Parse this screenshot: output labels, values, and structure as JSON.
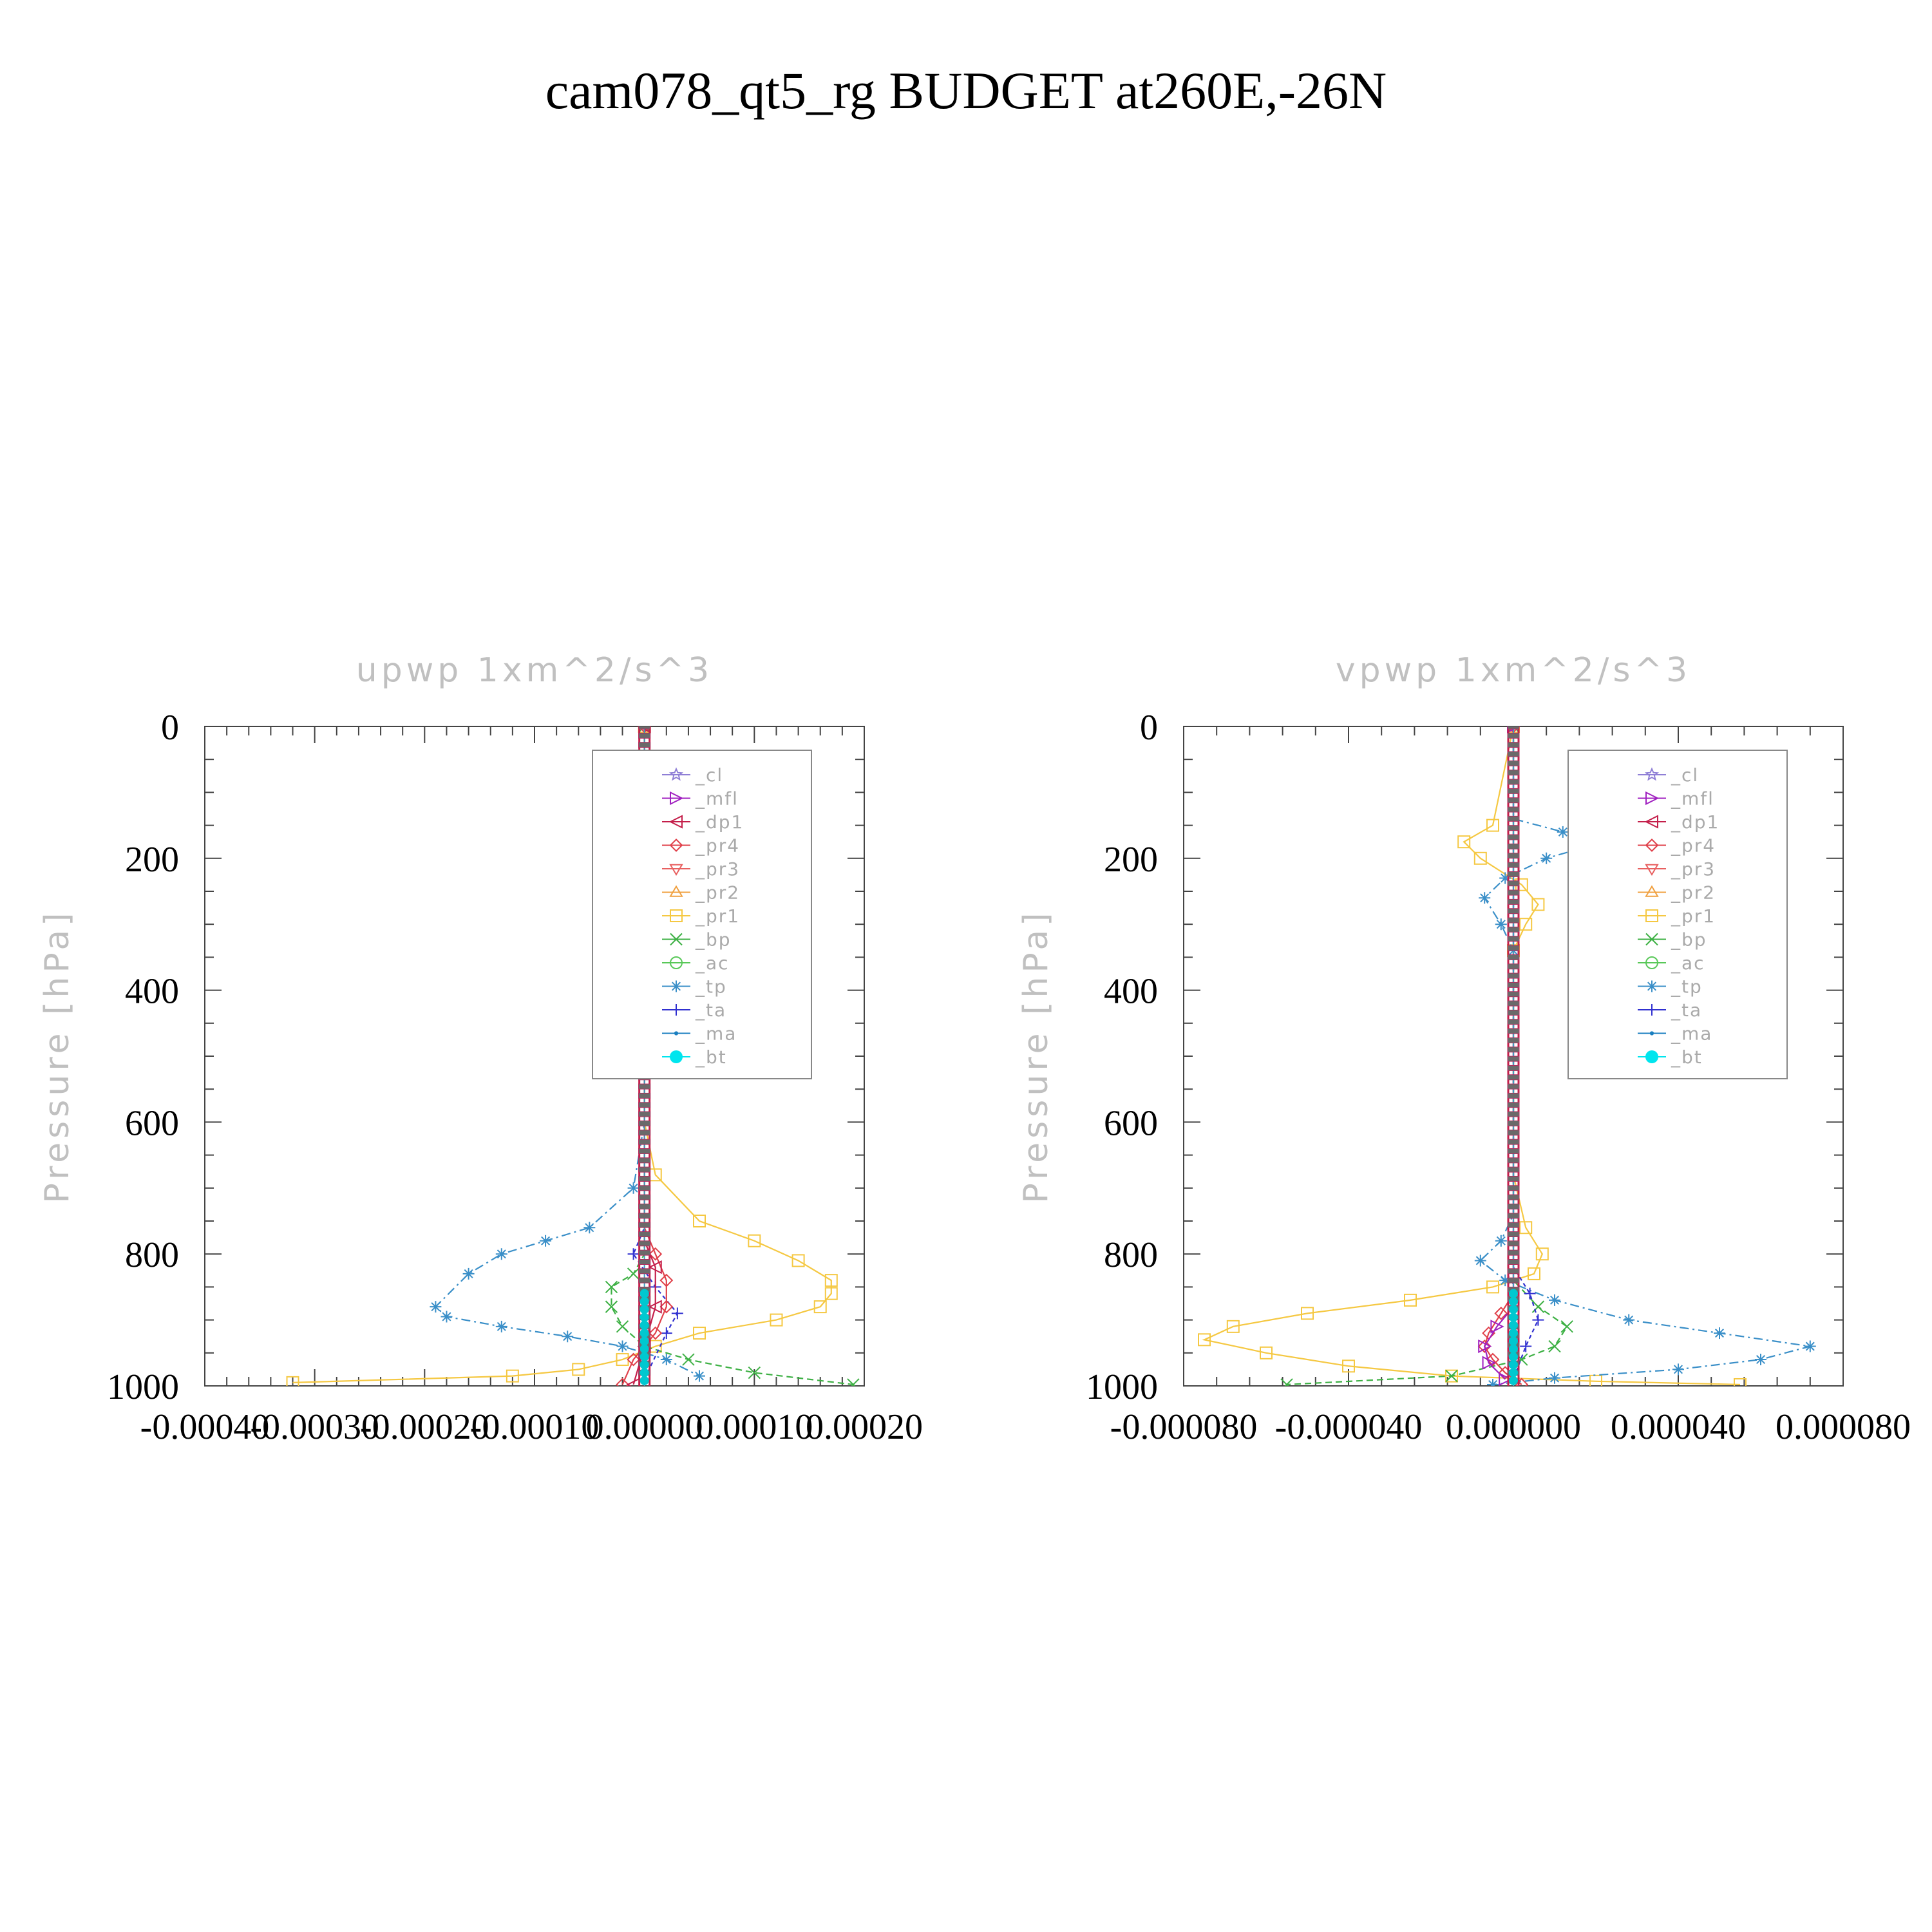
{
  "figure_title": "cam078_qt5_rg  BUDGET at260E,-26N",
  "colors": {
    "_cl": "#8f7fd6",
    "_mfl": "#a020c0",
    "_dp1": "#c41e4a",
    "_pr4": "#e0404a",
    "_pr3": "#e86060",
    "_pr2": "#f0a040",
    "_pr1": "#f5c842",
    "_bp": "#3cb043",
    "_ac": "#58c858",
    "_tp": "#3a8fc8",
    "_ta": "#3030d0",
    "_ma": "#1a7fc0",
    "_bt": "#00e5ee"
  },
  "chart_data": [
    {
      "type": "line",
      "title": "upwp   1xm^2/s^3",
      "ylabel": "Pressure [hPa]",
      "xlabel": "",
      "xlim": [
        -0.0004,
        0.0002
      ],
      "ylim": [
        1000,
        0
      ],
      "y_inverted": true,
      "xticks": [
        "-0.00040",
        "-0.00030",
        "-0.00020",
        "-0.00010",
        "0.00000",
        "0.00010",
        "0.00020"
      ],
      "yticks": [
        "0",
        "200",
        "400",
        "600",
        "800",
        "1000"
      ],
      "legend_position": "top-right",
      "legend": [
        "_cl",
        "_mfl",
        "_dp1",
        "_pr4",
        "_pr3",
        "_pr2",
        "_pr1",
        "_bp",
        "_ac",
        "_tp",
        "_ta",
        "_ma",
        "_bt"
      ],
      "series": [
        {
          "name": "_pr1",
          "x": [
            0,
            0,
            1e-05,
            5e-05,
            0.0001,
            0.00014,
            0.00017,
            0.00017,
            0.00016,
            0.00012,
            5e-05,
            1e-05,
            -2e-05,
            -6e-05,
            -0.00012,
            -0.00032
          ],
          "y": [
            0,
            600,
            680,
            750,
            780,
            810,
            840,
            860,
            880,
            900,
            920,
            940,
            960,
            975,
            985,
            995
          ]
        },
        {
          "name": "_tp",
          "x": [
            0,
            0,
            -1e-05,
            -5e-05,
            -9e-05,
            -0.00013,
            -0.00016,
            -0.00019,
            -0.00018,
            -0.00013,
            -7e-05,
            -2e-05,
            2e-05,
            5e-05
          ],
          "y": [
            0,
            600,
            700,
            760,
            780,
            800,
            830,
            880,
            895,
            910,
            925,
            940,
            960,
            985
          ]
        },
        {
          "name": "_bp",
          "x": [
            0,
            0,
            -1e-05,
            -3e-05,
            -3e-05,
            -2e-05,
            0,
            4e-05,
            0.0001,
            0.00019
          ],
          "y": [
            0,
            800,
            830,
            850,
            880,
            910,
            940,
            960,
            980,
            998
          ]
        },
        {
          "name": "_ta",
          "x": [
            0,
            0,
            -1e-05,
            1e-05,
            3e-05,
            2e-05,
            0
          ],
          "y": [
            0,
            760,
            800,
            850,
            890,
            920,
            990
          ]
        },
        {
          "name": "_pr4",
          "x": [
            0,
            0,
            1e-05,
            2e-05,
            2e-05,
            1e-05,
            -1e-05,
            -2e-05
          ],
          "y": [
            0,
            760,
            800,
            840,
            880,
            920,
            960,
            998
          ]
        },
        {
          "name": "_dp1",
          "x": [
            0,
            0,
            1e-05,
            1e-05,
            0,
            -1e-05
          ],
          "y": [
            0,
            780,
            820,
            880,
            940,
            998
          ]
        },
        {
          "name": "_bt",
          "x": [
            0,
            0
          ],
          "y": [
            0,
            1000
          ]
        }
      ]
    },
    {
      "type": "line",
      "title": "vpwp   1xm^2/s^3",
      "ylabel": "Pressure [hPa]",
      "xlabel": "",
      "xlim": [
        -8e-05,
        8e-05
      ],
      "ylim": [
        1000,
        0
      ],
      "y_inverted": true,
      "xticks": [
        "-0.000080",
        "-0.000040",
        "0.000000",
        "0.000040",
        "0.000080"
      ],
      "yticks": [
        "0",
        "200",
        "400",
        "600",
        "800",
        "1000"
      ],
      "legend_position": "top-right",
      "legend": [
        "_cl",
        "_mfl",
        "_dp1",
        "_pr4",
        "_pr3",
        "_pr2",
        "_pr1",
        "_bp",
        "_ac",
        "_tp",
        "_ta",
        "_ma",
        "_bt"
      ],
      "series": [
        {
          "name": "_pr1",
          "x": [
            0,
            -5e-06,
            -1.2e-05,
            -8e-06,
            2e-06,
            6e-06,
            3e-06,
            0,
            0,
            3e-06,
            7e-06,
            5e-06,
            -5e-06,
            -2.5e-05,
            -5e-05,
            -6.8e-05,
            -7.5e-05,
            -6e-05,
            -4e-05,
            -1.5e-05,
            2e-05,
            5.5e-05
          ],
          "y": [
            0,
            150,
            175,
            200,
            240,
            270,
            300,
            340,
            680,
            760,
            800,
            830,
            850,
            870,
            890,
            910,
            930,
            950,
            970,
            985,
            993,
            998
          ]
        },
        {
          "name": "_tp",
          "x": [
            0,
            0,
            1.2e-05,
            2.2e-05,
            8e-06,
            -2e-06,
            -7e-06,
            -3e-06,
            0,
            0,
            -3e-06,
            -8e-06,
            -2e-06,
            1e-05,
            2.8e-05,
            5e-05,
            7.2e-05,
            6e-05,
            4e-05,
            1e-05,
            -5e-06
          ],
          "y": [
            0,
            140,
            160,
            175,
            200,
            230,
            260,
            300,
            340,
            740,
            780,
            810,
            840,
            870,
            900,
            920,
            940,
            960,
            975,
            988,
            998
          ]
        },
        {
          "name": "_bp",
          "x": [
            0,
            0,
            6e-06,
            1.3e-05,
            1e-05,
            2e-06,
            -1.5e-05,
            -5.5e-05
          ],
          "y": [
            0,
            840,
            880,
            910,
            940,
            960,
            985,
            998
          ]
        },
        {
          "name": "_ta",
          "x": [
            0,
            0,
            4e-06,
            6e-06,
            3e-06,
            0
          ],
          "y": [
            0,
            820,
            860,
            900,
            940,
            990
          ]
        },
        {
          "name": "_pr4",
          "x": [
            0,
            0,
            -3e-06,
            -6e-06,
            -7e-06,
            -5e-06,
            -2e-06,
            2e-06
          ],
          "y": [
            0,
            860,
            890,
            920,
            940,
            960,
            980,
            998
          ]
        },
        {
          "name": "_mfl",
          "x": [
            0,
            0,
            -4e-06,
            -7e-06,
            -6e-06,
            -2e-06
          ],
          "y": [
            0,
            880,
            910,
            940,
            965,
            990
          ]
        },
        {
          "name": "_bt",
          "x": [
            0,
            0
          ],
          "y": [
            0,
            1000
          ]
        }
      ]
    }
  ]
}
